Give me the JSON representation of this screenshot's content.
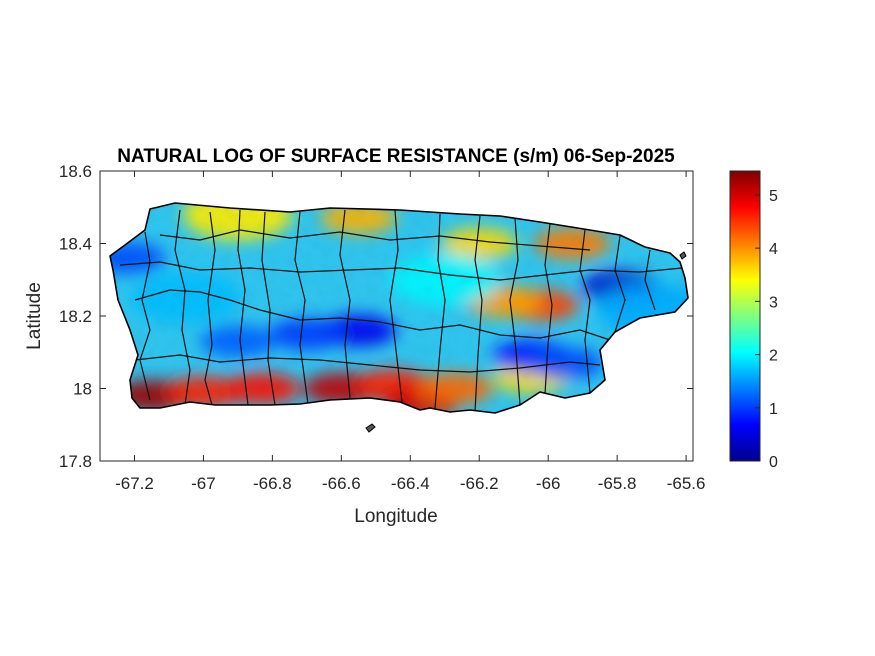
{
  "chart_data": {
    "type": "heatmap",
    "title": "NATURAL LOG OF SURFACE RESISTANCE (s/m) 06-Sep-2025",
    "xlabel": "Longitude",
    "ylabel": "Latitude",
    "xlim": [
      -67.3,
      -65.58
    ],
    "ylim": [
      17.8,
      18.6
    ],
    "xticks": [
      -67.2,
      -67,
      -66.8,
      -66.6,
      -66.4,
      -66.2,
      -66,
      -65.8,
      -65.6
    ],
    "xtick_labels": [
      "-67.2",
      "-67",
      "-66.8",
      "-66.6",
      "-66.4",
      "-66.2",
      "-66",
      "-65.8",
      "-65.6"
    ],
    "yticks": [
      17.8,
      18,
      18.2,
      18.4,
      18.6
    ],
    "ytick_labels": [
      "17.8",
      "18",
      "18.2",
      "18.4",
      "18.6"
    ],
    "colormap": "jet",
    "clim": [
      0,
      5.45
    ],
    "colorbar_ticks": [
      0,
      1,
      2,
      3,
      4,
      5
    ],
    "colorbar_tick_labels": [
      "0",
      "1",
      "2",
      "3",
      "4",
      "5"
    ],
    "grid": false,
    "region_features": [
      {
        "lon": -67.15,
        "lat": 17.98,
        "value": 5.3
      },
      {
        "lon": -67.0,
        "lat": 17.99,
        "value": 4.6
      },
      {
        "lon": -66.83,
        "lat": 18.0,
        "value": 4.7
      },
      {
        "lon": -66.6,
        "lat": 18.0,
        "value": 5.1
      },
      {
        "lon": -66.45,
        "lat": 18.01,
        "value": 4.6
      },
      {
        "lon": -66.37,
        "lat": 17.96,
        "value": 5.0
      },
      {
        "lon": -66.27,
        "lat": 18.0,
        "value": 4.2
      },
      {
        "lon": -66.05,
        "lat": 18.03,
        "value": 3.6
      },
      {
        "lon": -66.02,
        "lat": 18.23,
        "value": 4.4
      },
      {
        "lon": -66.13,
        "lat": 18.24,
        "value": 3.9
      },
      {
        "lon": -65.93,
        "lat": 18.4,
        "value": 4.1
      },
      {
        "lon": -66.2,
        "lat": 18.4,
        "value": 3.6
      },
      {
        "lon": -66.9,
        "lat": 18.48,
        "value": 3.5
      },
      {
        "lon": -66.55,
        "lat": 18.47,
        "value": 3.8
      },
      {
        "lon": -66.55,
        "lat": 18.16,
        "value": 0.6
      },
      {
        "lon": -66.7,
        "lat": 18.15,
        "value": 1.0
      },
      {
        "lon": -66.9,
        "lat": 18.13,
        "value": 1.2
      },
      {
        "lon": -66.05,
        "lat": 18.09,
        "value": 0.8
      },
      {
        "lon": -65.95,
        "lat": 18.07,
        "value": 1.1
      },
      {
        "lon": -65.79,
        "lat": 18.28,
        "value": 0.4
      },
      {
        "lon": -67.22,
        "lat": 18.36,
        "value": 1.1
      },
      {
        "lon": -67.05,
        "lat": 18.25,
        "value": 1.7
      },
      {
        "lon": -66.3,
        "lat": 18.3,
        "value": 2.0
      },
      {
        "lon": -65.7,
        "lat": 18.22,
        "value": 1.6
      }
    ]
  }
}
